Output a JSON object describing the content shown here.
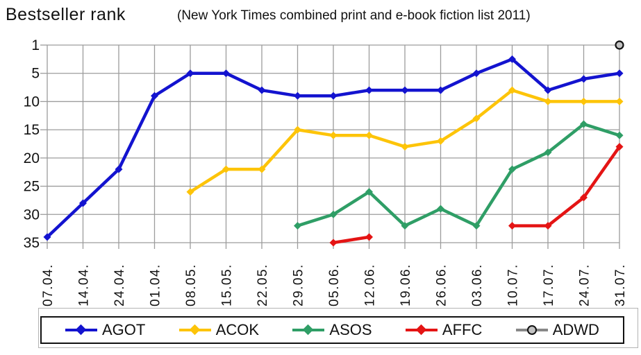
{
  "title": "Bestseller rank",
  "subtitle": "(New York Times combined print and e-book fiction list 2011)",
  "chart_data": {
    "type": "line",
    "title": "Bestseller rank",
    "subtitle": "(New York Times combined print and e-book fiction list 2011)",
    "x_categories": [
      "07.04.",
      "14.04.",
      "24.04.",
      "01.04.",
      "08.05.",
      "15.05.",
      "22.05.",
      "29.05.",
      "05.06.",
      "12.06.",
      "19.06.",
      "26.06.",
      "03.06.",
      "10.07.",
      "17.07.",
      "24.07.",
      "31.07."
    ],
    "y_axis": {
      "ticks": [
        1,
        5,
        10,
        15,
        20,
        25,
        30,
        35
      ],
      "inverted": true,
      "best_rank_at_top": 1,
      "worst_rank_at_bottom": 35
    },
    "grid": true,
    "grid_color": "#9c9c9c",
    "text_color": "#111111",
    "legend_position": "bottom",
    "series": [
      {
        "name": "AGOT",
        "color": "#1313cf",
        "marker": "diamond",
        "values": [
          34,
          28,
          22,
          9,
          5,
          5,
          8,
          9,
          9,
          8,
          8,
          8,
          5,
          3,
          8,
          6,
          5
        ]
      },
      {
        "name": "ACOK",
        "color": "#fdc409",
        "marker": "diamond",
        "values": [
          null,
          null,
          null,
          null,
          26,
          22,
          22,
          15,
          16,
          16,
          18,
          17,
          13,
          8,
          10,
          10,
          10
        ]
      },
      {
        "name": "ASOS",
        "color": "#2f9e66",
        "marker": "diamond",
        "values": [
          null,
          null,
          null,
          null,
          null,
          null,
          null,
          32,
          30,
          26,
          32,
          29,
          32,
          22,
          19,
          14,
          16
        ]
      },
      {
        "name": "AFFC",
        "color": "#e41414",
        "marker": "diamond",
        "values": [
          null,
          null,
          null,
          null,
          null,
          null,
          null,
          null,
          35,
          34,
          null,
          null,
          null,
          32,
          32,
          27,
          18
        ]
      },
      {
        "name": "ADWD",
        "color": "#888888",
        "marker": "circle",
        "marker_fill": "#c2c2c2",
        "values": [
          null,
          null,
          null,
          null,
          null,
          null,
          null,
          null,
          null,
          null,
          null,
          null,
          null,
          null,
          null,
          null,
          1
        ]
      }
    ]
  }
}
